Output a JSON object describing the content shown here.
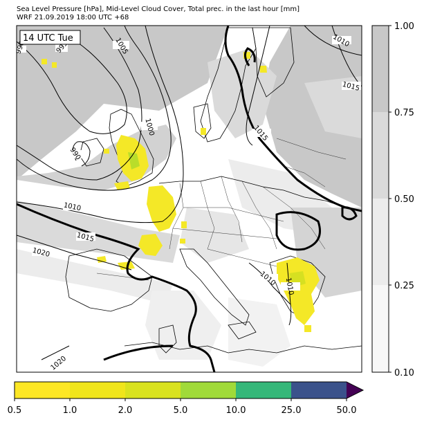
{
  "header": {
    "title_line1": "Sea Level Pressure [hPa], Mid-Level Cloud Cover, Total prec. in the last hour [mm]",
    "title_line2": "WRF 21.09.2019 18:00 UTC +68"
  },
  "map": {
    "time_label": "14 UTC Tue",
    "isobar_labels": [
      "990",
      "995",
      "1005",
      "1000",
      "990",
      "1010",
      "1015",
      "1020",
      "1010",
      "1015",
      "1010",
      "1015",
      "1020",
      "1010"
    ]
  },
  "cloud_colorbar": {
    "ticks": [
      "1.00",
      "0.75",
      "0.50",
      "0.25",
      "0.10"
    ],
    "colors": [
      "#c8c8c8",
      "#dadada",
      "#ececec",
      "#f7f7f7"
    ]
  },
  "precip_colorbar": {
    "ticks": [
      "0.5",
      "1.0",
      "2.0",
      "5.0",
      "10.0",
      "25.0",
      "50.0"
    ],
    "colors": [
      "#fde725",
      "#f0e51b",
      "#d9e21f",
      "#a0da39",
      "#35b779",
      "#31688e",
      "#3b528b",
      "#440154"
    ]
  }
}
